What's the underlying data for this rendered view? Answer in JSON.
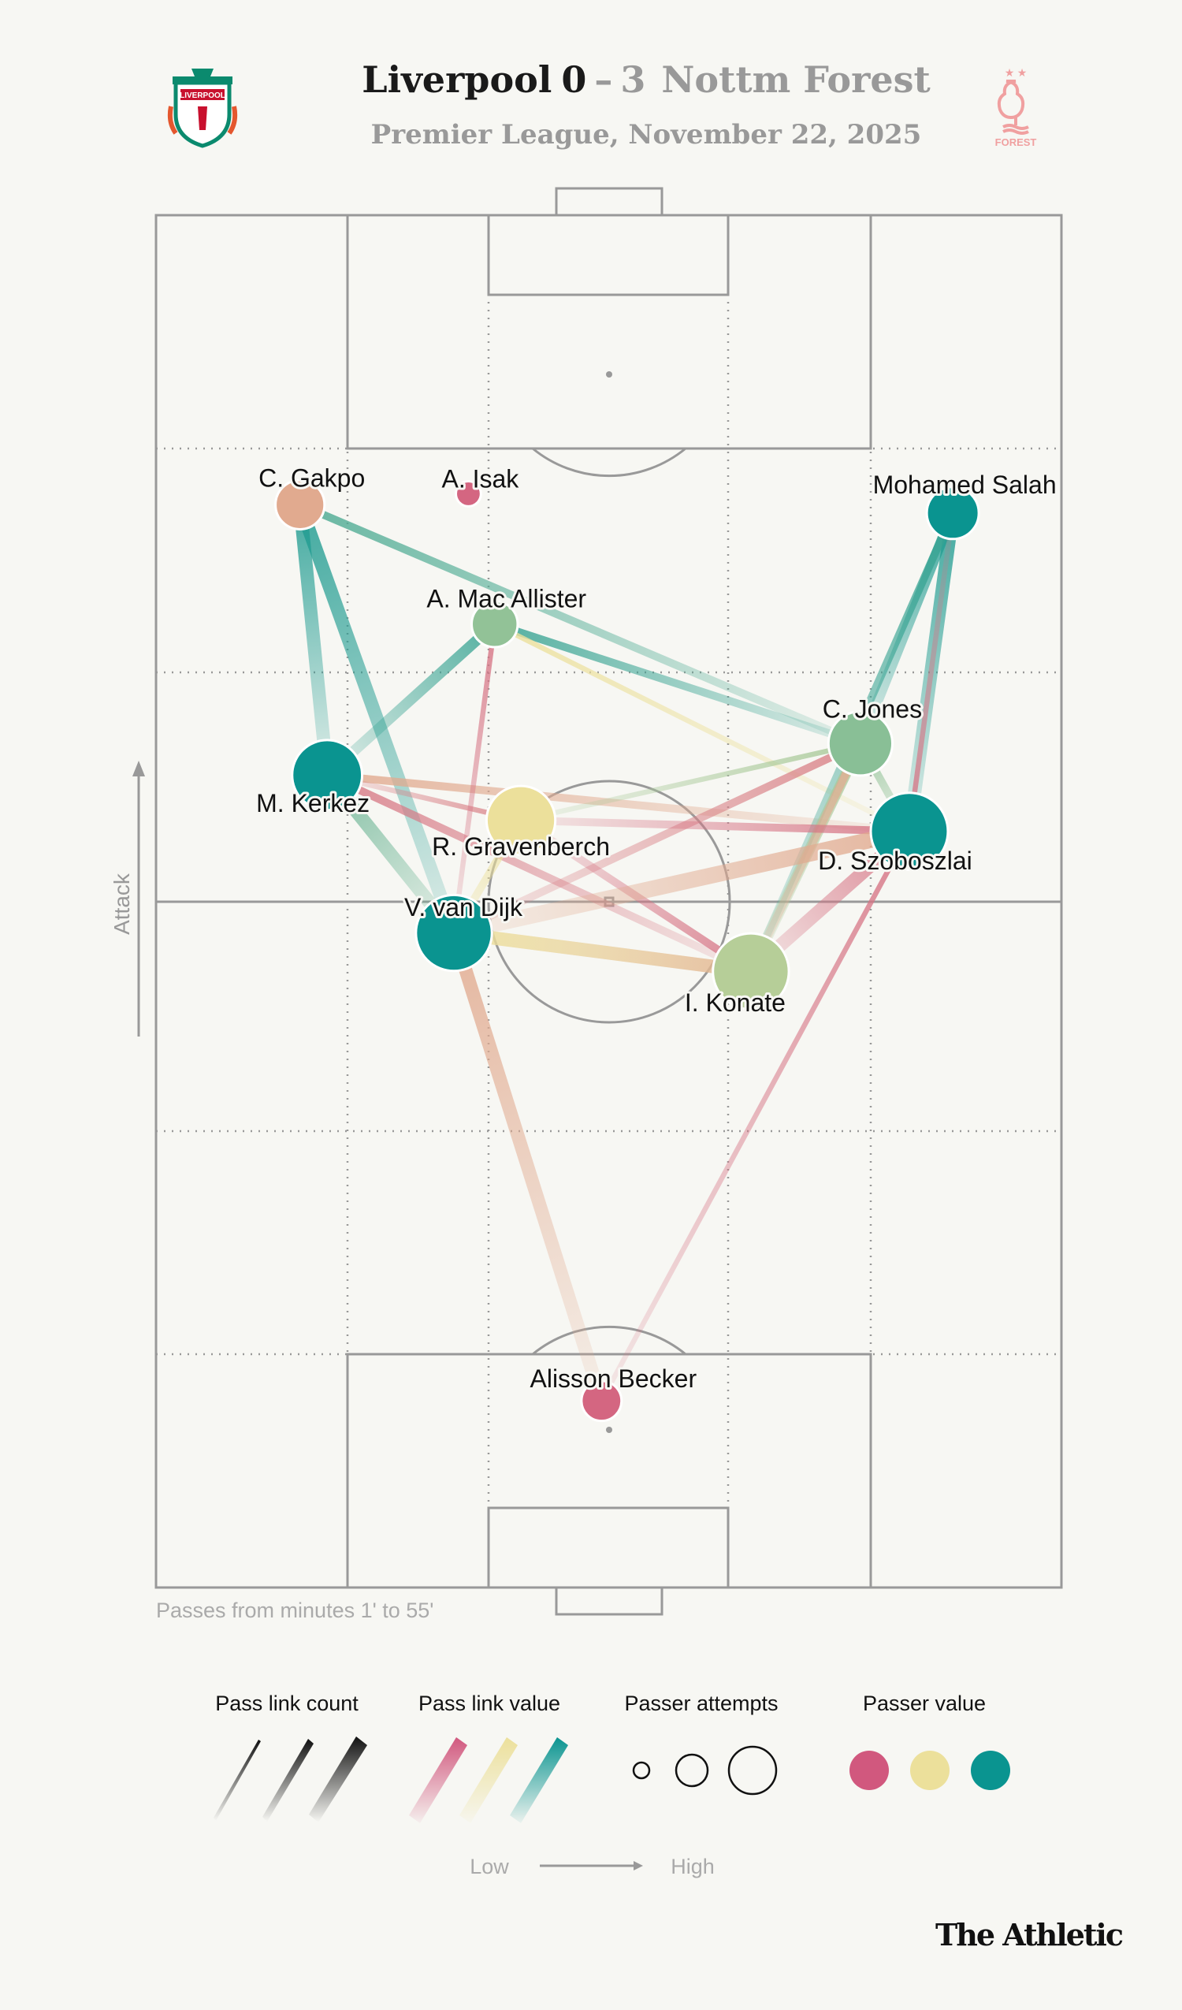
{
  "header": {
    "home_team": "Liverpool",
    "home_score": "0",
    "separator": "–",
    "away_score": "3",
    "away_team": "Nottm Forest",
    "subtitle": "Premier League, November 22, 2025",
    "home_logo_text": "LIVERPOOL",
    "away_logo_text": "FOREST"
  },
  "caption": "Passes from minutes 1' to 55'",
  "attack_label": "Attack",
  "brand": "The Athletic",
  "legend": {
    "count_title": "Pass link count",
    "value_title": "Pass link value",
    "attempts_title": "Passer attempts",
    "passer_value_title": "Passer value",
    "low": "Low",
    "high": "High"
  },
  "colors": {
    "background": "#f7f7f3",
    "pitch_line": "#999999",
    "low": "#d1587e",
    "mid": "#ece09b",
    "high": "#0a9490"
  },
  "chart_data": {
    "type": "pass-network",
    "pitch_units": "0-100 width (x) and length (y), attacking upward",
    "nodes": [
      {
        "id": "gakpo",
        "name": "C. Gakpo",
        "x": 15.9,
        "y": 78.9,
        "attempts": 0.45,
        "value": 0.3
      },
      {
        "id": "isak",
        "name": "A. Isak",
        "x": 34.5,
        "y": 79.7,
        "attempts": 0.05,
        "value": 0.05
      },
      {
        "id": "macallister",
        "name": "A. Mac Allister",
        "x": 37.4,
        "y": 70.2,
        "attempts": 0.4,
        "value": 0.7
      },
      {
        "id": "salah",
        "name": "Mohamed Salah",
        "x": 88.0,
        "y": 78.3,
        "attempts": 0.5,
        "value": 1.0
      },
      {
        "id": "jones",
        "name": "C. Jones",
        "x": 77.8,
        "y": 61.5,
        "attempts": 0.7,
        "value": 0.72
      },
      {
        "id": "kerkez",
        "name": "M. Kerkez",
        "x": 18.9,
        "y": 59.2,
        "attempts": 0.8,
        "value": 1.0
      },
      {
        "id": "gravenberch",
        "name": "R. Gravenberch",
        "x": 40.3,
        "y": 55.9,
        "attempts": 0.78,
        "value": 0.5
      },
      {
        "id": "szoboszlai",
        "name": "D. Szoboszlai",
        "x": 83.2,
        "y": 55.1,
        "attempts": 0.92,
        "value": 1.0
      },
      {
        "id": "vandijk",
        "name": "V. van Dijk",
        "x": 32.9,
        "y": 47.7,
        "attempts": 0.9,
        "value": 1.0
      },
      {
        "id": "konate",
        "name": "I. Konate",
        "x": 65.7,
        "y": 44.9,
        "attempts": 0.9,
        "value": 0.62
      },
      {
        "id": "becker",
        "name": "Alisson Becker",
        "x": 49.2,
        "y": 13.6,
        "attempts": 0.3,
        "value": 0.05
      }
    ],
    "links": [
      {
        "from": "kerkez",
        "to": "gakpo",
        "count": 4,
        "value": 0.95
      },
      {
        "from": "vandijk",
        "to": "gakpo",
        "count": 4,
        "value": 0.95
      },
      {
        "from": "jones",
        "to": "gakpo",
        "count": 2,
        "value": 0.85
      },
      {
        "from": "kerkez",
        "to": "macallister",
        "count": 3,
        "value": 0.9
      },
      {
        "from": "vandijk",
        "to": "kerkez",
        "count": 4,
        "value": 0.78
      },
      {
        "from": "szoboszlai",
        "to": "kerkez",
        "count": 2,
        "value": 0.3
      },
      {
        "from": "konate",
        "to": "kerkez",
        "count": 2,
        "value": 0.12
      },
      {
        "from": "kerkez",
        "to": "gravenberch",
        "count": 1,
        "value": 0.15
      },
      {
        "from": "jones",
        "to": "macallister",
        "count": 2,
        "value": 0.9
      },
      {
        "from": "szoboszlai",
        "to": "macallister",
        "count": 1,
        "value": 0.5
      },
      {
        "from": "vandijk",
        "to": "macallister",
        "count": 1,
        "value": 0.1
      },
      {
        "from": "jones",
        "to": "salah",
        "count": 3,
        "value": 0.95
      },
      {
        "from": "szoboszlai",
        "to": "salah",
        "count": 4,
        "value": 0.95
      },
      {
        "from": "konate",
        "to": "salah",
        "count": 2,
        "value": 0.9
      },
      {
        "from": "salah",
        "to": "szoboszlai",
        "count": 1,
        "value": 0.1
      },
      {
        "from": "gravenberch",
        "to": "jones",
        "count": 1,
        "value": 0.65
      },
      {
        "from": "szoboszlai",
        "to": "jones",
        "count": 2,
        "value": 0.7
      },
      {
        "from": "konate",
        "to": "jones",
        "count": 3,
        "value": 0.65
      },
      {
        "from": "konate",
        "to": "jones",
        "count": 2,
        "value": 0.3
      },
      {
        "from": "vandijk",
        "to": "jones",
        "count": 2,
        "value": 0.15
      },
      {
        "from": "gravenberch",
        "to": "szoboszlai",
        "count": 2,
        "value": 0.1
      },
      {
        "from": "gravenberch",
        "to": "konate",
        "count": 2,
        "value": 0.1
      },
      {
        "from": "vandijk",
        "to": "gravenberch",
        "count": 2,
        "value": 0.5
      },
      {
        "from": "vandijk",
        "to": "szoboszlai",
        "count": 5,
        "value": 0.3
      },
      {
        "from": "konate",
        "to": "szoboszlai",
        "count": 4,
        "value": 0.1
      },
      {
        "from": "becker",
        "to": "szoboszlai",
        "count": 1,
        "value": 0.1
      },
      {
        "from": "vandijk",
        "to": "konate",
        "count": 4,
        "value": 0.3
      },
      {
        "from": "konate",
        "to": "vandijk",
        "count": 4,
        "value": 0.5
      },
      {
        "from": "becker",
        "to": "vandijk",
        "count": 4,
        "value": 0.3
      }
    ]
  }
}
